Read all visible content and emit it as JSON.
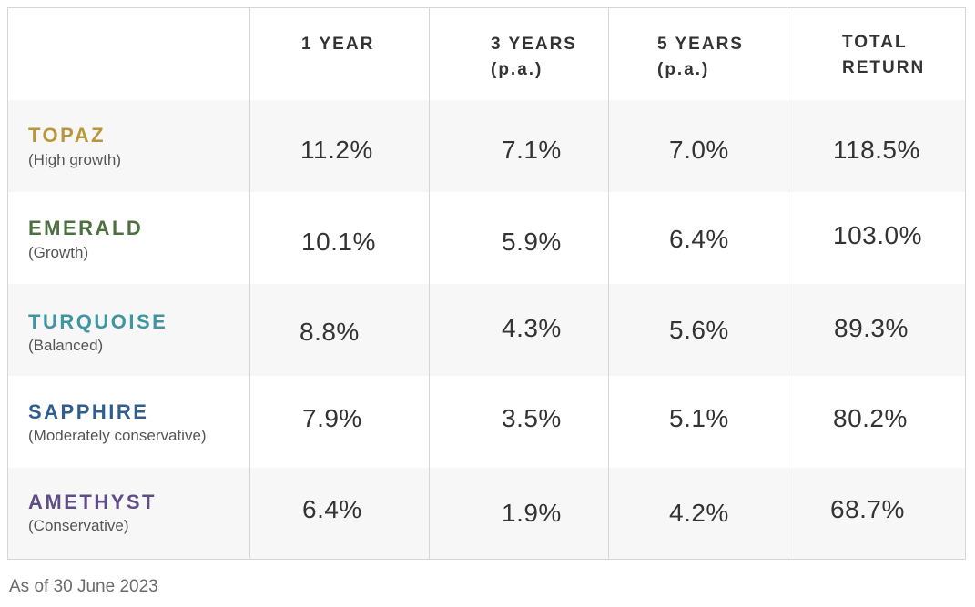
{
  "header": {
    "col1": [
      "1 YEAR",
      ""
    ],
    "col2": [
      "3 YEARS",
      "(p.a.)"
    ],
    "col3": [
      "5 YEARS",
      "(p.a.)"
    ],
    "col4": [
      "TOTAL",
      "RETURN"
    ]
  },
  "rows": [
    {
      "name": "TOPAZ",
      "sub": "(High growth)",
      "color": "#b9953b",
      "values": [
        "11.2%",
        "7.1%",
        "7.0%",
        "118.5%"
      ]
    },
    {
      "name": "EMERALD",
      "sub": "(Growth)",
      "color": "#4d7040",
      "values": [
        "10.1%",
        "5.9%",
        "6.4%",
        "103.0%"
      ]
    },
    {
      "name": "TURQUOISE",
      "sub": "(Balanced)",
      "color": "#3f96a0",
      "values": [
        "8.8%",
        "4.3%",
        "5.6%",
        "89.3%"
      ]
    },
    {
      "name": "SAPPHIRE",
      "sub": "(Moderately conservative)",
      "color": "#2f5d8e",
      "values": [
        "7.9%",
        "3.5%",
        "5.1%",
        "80.2%"
      ]
    },
    {
      "name": "AMETHYST",
      "sub": "(Conservative)",
      "color": "#5f4d88",
      "values": [
        "6.4%",
        "1.9%",
        "4.2%",
        "68.7%"
      ]
    }
  ],
  "footnote": "As of 30 June 2023"
}
